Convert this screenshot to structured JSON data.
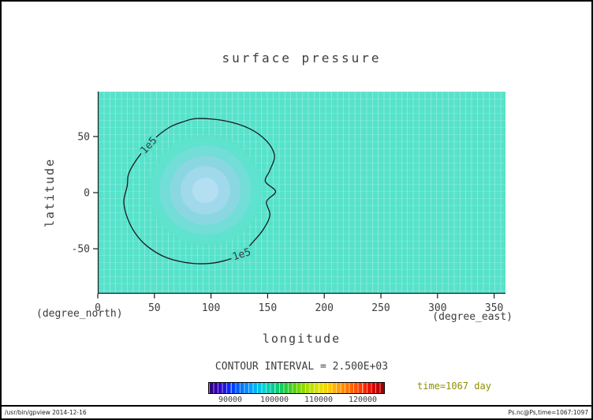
{
  "footer": {
    "left": "/usr/bin/gpview  2014-12-16",
    "right": "Ps.nc@Ps,time=1067:1097"
  },
  "colors": {
    "plot_bg": "#56E2CB",
    "grid_v": "rgba(255,255,255,0.28)",
    "grid_h": "rgba(255,255,255,0.16)",
    "axis": "#1a1a1a",
    "contour": "#1a1a1a",
    "text": "#3c3c3c",
    "time_text": "#8f8f00",
    "blob_levels": [
      "#B4DFF2",
      "#A0D9EB",
      "#8BD7E1",
      "#73DDD7",
      "#5FE2CE"
    ]
  },
  "chart_data": {
    "type": "heatmap",
    "subtype": "filled-contour-latlon-map",
    "title": "surface pressure",
    "xlabel": "longitude",
    "xunit": "(degree_east)",
    "ylabel": "latitude",
    "yunit": "(degree_north)",
    "xlim": [
      0,
      360
    ],
    "ylim": [
      -90,
      90
    ],
    "x_ticks": [
      0,
      50,
      100,
      150,
      200,
      250,
      300,
      350
    ],
    "y_ticks": [
      -50,
      0,
      50
    ],
    "grid": true,
    "contour_interval": 2500,
    "contour_interval_text": "CONTOUR INTERVAL = 2.500E+03",
    "time_text": "time=1067 day",
    "field_description": "Surface pressure (Pa): near-uniform ~1.01e5 turquoise background with a low-pressure anomaly (~0.96e5, lighter blue shading) centered near lon 95, lat 2, enclosed by the labeled 1e5 contour",
    "background_value": 101000,
    "low_center": {
      "lon": 95,
      "lat": 2,
      "value": 96000,
      "rx_deg": 52,
      "ry_deg": 51
    },
    "contour_lines": [
      {
        "value": 100000,
        "label": "1e5",
        "points": [
          [
            88,
            66
          ],
          [
            112,
            64
          ],
          [
            134,
            57
          ],
          [
            149,
            46
          ],
          [
            156,
            33
          ],
          [
            152,
            20
          ],
          [
            148,
            10
          ],
          [
            157,
            1
          ],
          [
            149,
            -8
          ],
          [
            152,
            -20
          ],
          [
            146,
            -33
          ],
          [
            137,
            -44
          ],
          [
            126,
            -55
          ],
          [
            106,
            -62
          ],
          [
            84,
            -63
          ],
          [
            61,
            -58
          ],
          [
            44,
            -48
          ],
          [
            33,
            -36
          ],
          [
            26,
            -22
          ],
          [
            23,
            -8
          ],
          [
            26,
            6
          ],
          [
            27,
            16
          ],
          [
            32,
            26
          ],
          [
            40,
            37
          ],
          [
            50,
            48
          ],
          [
            63,
            58
          ],
          [
            75,
            63
          ]
        ]
      }
    ],
    "contour_labels": [
      {
        "text": "1e5",
        "lon": 45,
        "lat": 42,
        "angle": -48
      },
      {
        "text": "1e5",
        "lon": 127,
        "lat": -55,
        "angle": -18
      }
    ],
    "colorbar": {
      "min": 85000,
      "max": 125000,
      "tick_values": [
        90000,
        100000,
        110000,
        120000
      ],
      "tick_labels": [
        "90000",
        "100000",
        "110000",
        "120000"
      ],
      "segments": 40,
      "colors": [
        "#2e0070",
        "#3300cc",
        "#0033ff",
        "#0077ff",
        "#00aaff",
        "#00d5d5",
        "#00cc88",
        "#22cc44",
        "#66d500",
        "#aadd00",
        "#e0e600",
        "#ffcc00",
        "#ff9900",
        "#ff6600",
        "#ff3300",
        "#dd0000",
        "#990000"
      ]
    }
  }
}
